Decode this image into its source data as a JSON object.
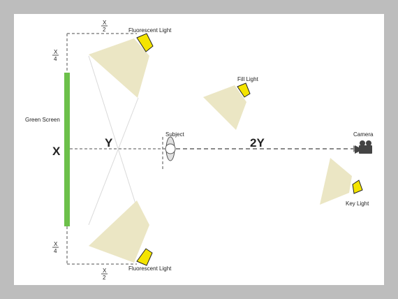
{
  "labels": {
    "fluorescent_top": "Fluorescent Light",
    "fluorescent_bottom": "Fluorescent Light",
    "fill_light": "Fill Light",
    "key_light": "Key Light",
    "camera": "Camera",
    "subject": "Subject",
    "green_screen": "Green Screen"
  },
  "dimensions": {
    "x": "X",
    "y": "Y",
    "two_y": "2Y",
    "top_frac_num": "X",
    "top_frac_den": "2",
    "left_top_frac_num": "X",
    "left_top_frac_den": "4",
    "left_bottom_frac_num": "X",
    "left_bottom_frac_den": "4",
    "bottom_frac_num": "X",
    "bottom_frac_den": "2"
  },
  "colors": {
    "frame": "#bdbdbd",
    "background": "#ffffff",
    "green_screen": "#6cc04a",
    "light_beam": "#ebe6c4",
    "light_head": "#f4e400",
    "dashed": "#8a8a8a",
    "camera": "#444444"
  }
}
